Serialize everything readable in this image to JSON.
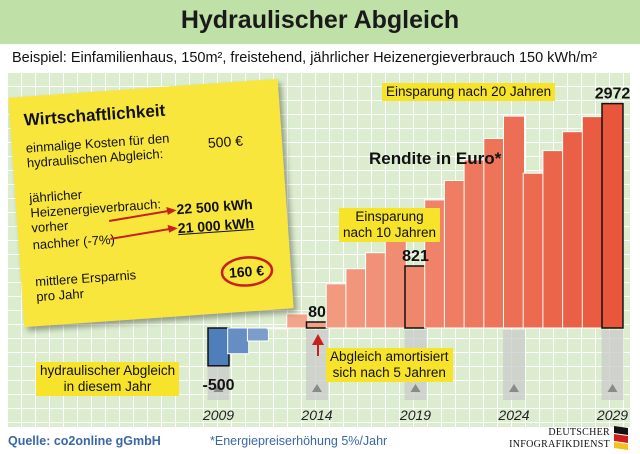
{
  "title": "Hydraulischer Abgleich",
  "subtitle": "Beispiel: Einfamilienhaus, 150m², freistehend, jährlicher Heizenergieverbrauch 150 kWh/m²",
  "chart_data": {
    "type": "bar",
    "title": "Rendite in Euro*",
    "categories": [
      "2009",
      "2010",
      "2011",
      "2012",
      "2013",
      "2014",
      "2015",
      "2016",
      "2017",
      "2018",
      "2019",
      "2020",
      "2021",
      "2022",
      "2023",
      "2024",
      "2025",
      "2026",
      "2027",
      "2028",
      "2029"
    ],
    "x_tick_labels": [
      "2009",
      "2014",
      "2019",
      "2024",
      "2029"
    ],
    "values": [
      -500,
      -340,
      -172,
      3,
      187,
      80,
      585,
      786,
      997,
      1219,
      821,
      1697,
      1954,
      2226,
      2510,
      2806,
      2050,
      2350,
      2600,
      2800,
      2972
    ],
    "labeled_values": [
      {
        "year": "2009",
        "value": -500
      },
      {
        "year": "2014",
        "value": 80
      },
      {
        "year": "2019",
        "value": 821
      },
      {
        "year": "2029",
        "value": 2972
      }
    ],
    "ylim": [
      -600,
      3100
    ],
    "colors": {
      "negative": "#4f7fba",
      "positive": "#e9563c",
      "positive_light": "#f4a98f"
    }
  },
  "annotations": {
    "ten_years": [
      "Einsparung",
      "nach 10 Jahren"
    ],
    "twenty_years": "Einsparung nach 20 Jahren",
    "amortisation": [
      "Abgleich amortisiert",
      "sich nach 5 Jahren"
    ],
    "start": [
      "hydraulischer Abgleich",
      "in diesem Jahr"
    ]
  },
  "note": {
    "title": "Wirtschaftlichkeit",
    "cost_label": [
      "einmalige Kosten für den",
      "hydraulischen Abgleich:"
    ],
    "cost_value": "500 €",
    "consumption_label": [
      "jährlicher",
      "Heizenergieverbrauch:"
    ],
    "before_label": "vorher",
    "before_value": "22 500 kWh",
    "after_label": "nachher (-7%)",
    "after_value": "21 000 kWh",
    "savings_label": [
      "mittlere Ersparnis",
      "pro Jahr"
    ],
    "savings_value": "160 €"
  },
  "footer": {
    "source": "Quelle: co2online gGmbH",
    "footnote": "*Energiepreiserhöhung 5%/Jahr",
    "logo_line1": "DEUTSCHER",
    "logo_line2": "INFOGRAFIKDIENST"
  }
}
